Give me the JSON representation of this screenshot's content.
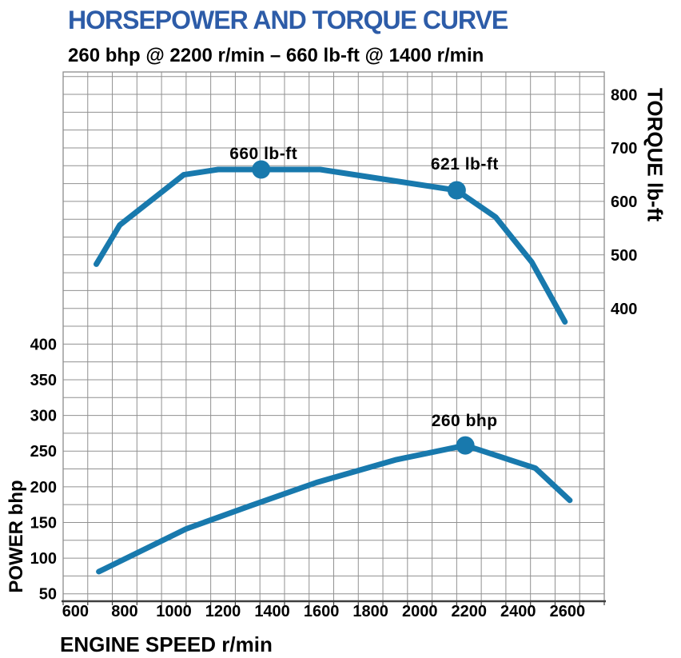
{
  "header": {
    "title": "HORSEPOWER AND TORQUE CURVE",
    "subtitle": "260 bhp @ 2200 r/min – 660 lb-ft @ 1400 r/min"
  },
  "chart_data": {
    "type": "line",
    "title": "HORSEPOWER AND TORQUE CURVE",
    "subtitle": "260 bhp @ 2200 r/min – 660 lb-ft @ 1400 r/min",
    "x_axis": {
      "label": "ENGINE SPEED r/min",
      "range": [
        550,
        2750
      ],
      "tick_labels": [
        600,
        800,
        1000,
        1200,
        1400,
        1600,
        1800,
        2000,
        2200,
        2400,
        2600
      ],
      "gridline_step": 100
    },
    "y_axis_left": {
      "label": "POWER bhp",
      "tick_labels": [
        50,
        100,
        150,
        200,
        250,
        300,
        350,
        400
      ],
      "units": "bhp"
    },
    "y_axis_right": {
      "label": "TORQUE lb-ft",
      "tick_labels": [
        400,
        500,
        600,
        700,
        800
      ],
      "units": "lb-ft"
    },
    "grid": true,
    "legend": false,
    "series": [
      {
        "name": "torque",
        "axis": "right",
        "points": [
          [
            685,
            483
          ],
          [
            780,
            556
          ],
          [
            1040,
            650
          ],
          [
            1180,
            660
          ],
          [
            1355,
            660
          ],
          [
            1595,
            660
          ],
          [
            2150,
            621
          ],
          [
            2308,
            571
          ],
          [
            2455,
            487
          ],
          [
            2590,
            375
          ]
        ]
      },
      {
        "name": "power",
        "axis": "left",
        "points": [
          [
            695,
            81
          ],
          [
            1050,
            141
          ],
          [
            1300,
            172
          ],
          [
            1580,
            206
          ],
          [
            1905,
            238
          ],
          [
            2185,
            258
          ],
          [
            2470,
            226
          ],
          [
            2610,
            181
          ]
        ]
      }
    ],
    "markers": [
      {
        "series": "torque",
        "x": 1355,
        "value": 660,
        "label": "660 lb-ft",
        "label_offset": [
          3,
          -13
        ]
      },
      {
        "series": "torque",
        "x": 2150,
        "value": 621,
        "label": "621 lb-ft",
        "label_offset": [
          10,
          -26
        ]
      },
      {
        "series": "power",
        "x": 2185,
        "value": 258,
        "label": "260 bhp",
        "label_offset": [
          -1,
          -24
        ]
      }
    ],
    "colors": {
      "line": "#1879ad",
      "marker": "#1879ad",
      "title": "#2d5ca8",
      "grid": "#919191",
      "border": "#8c8c8c",
      "axis_line": "#3f3f3f",
      "text": "#000000"
    }
  }
}
